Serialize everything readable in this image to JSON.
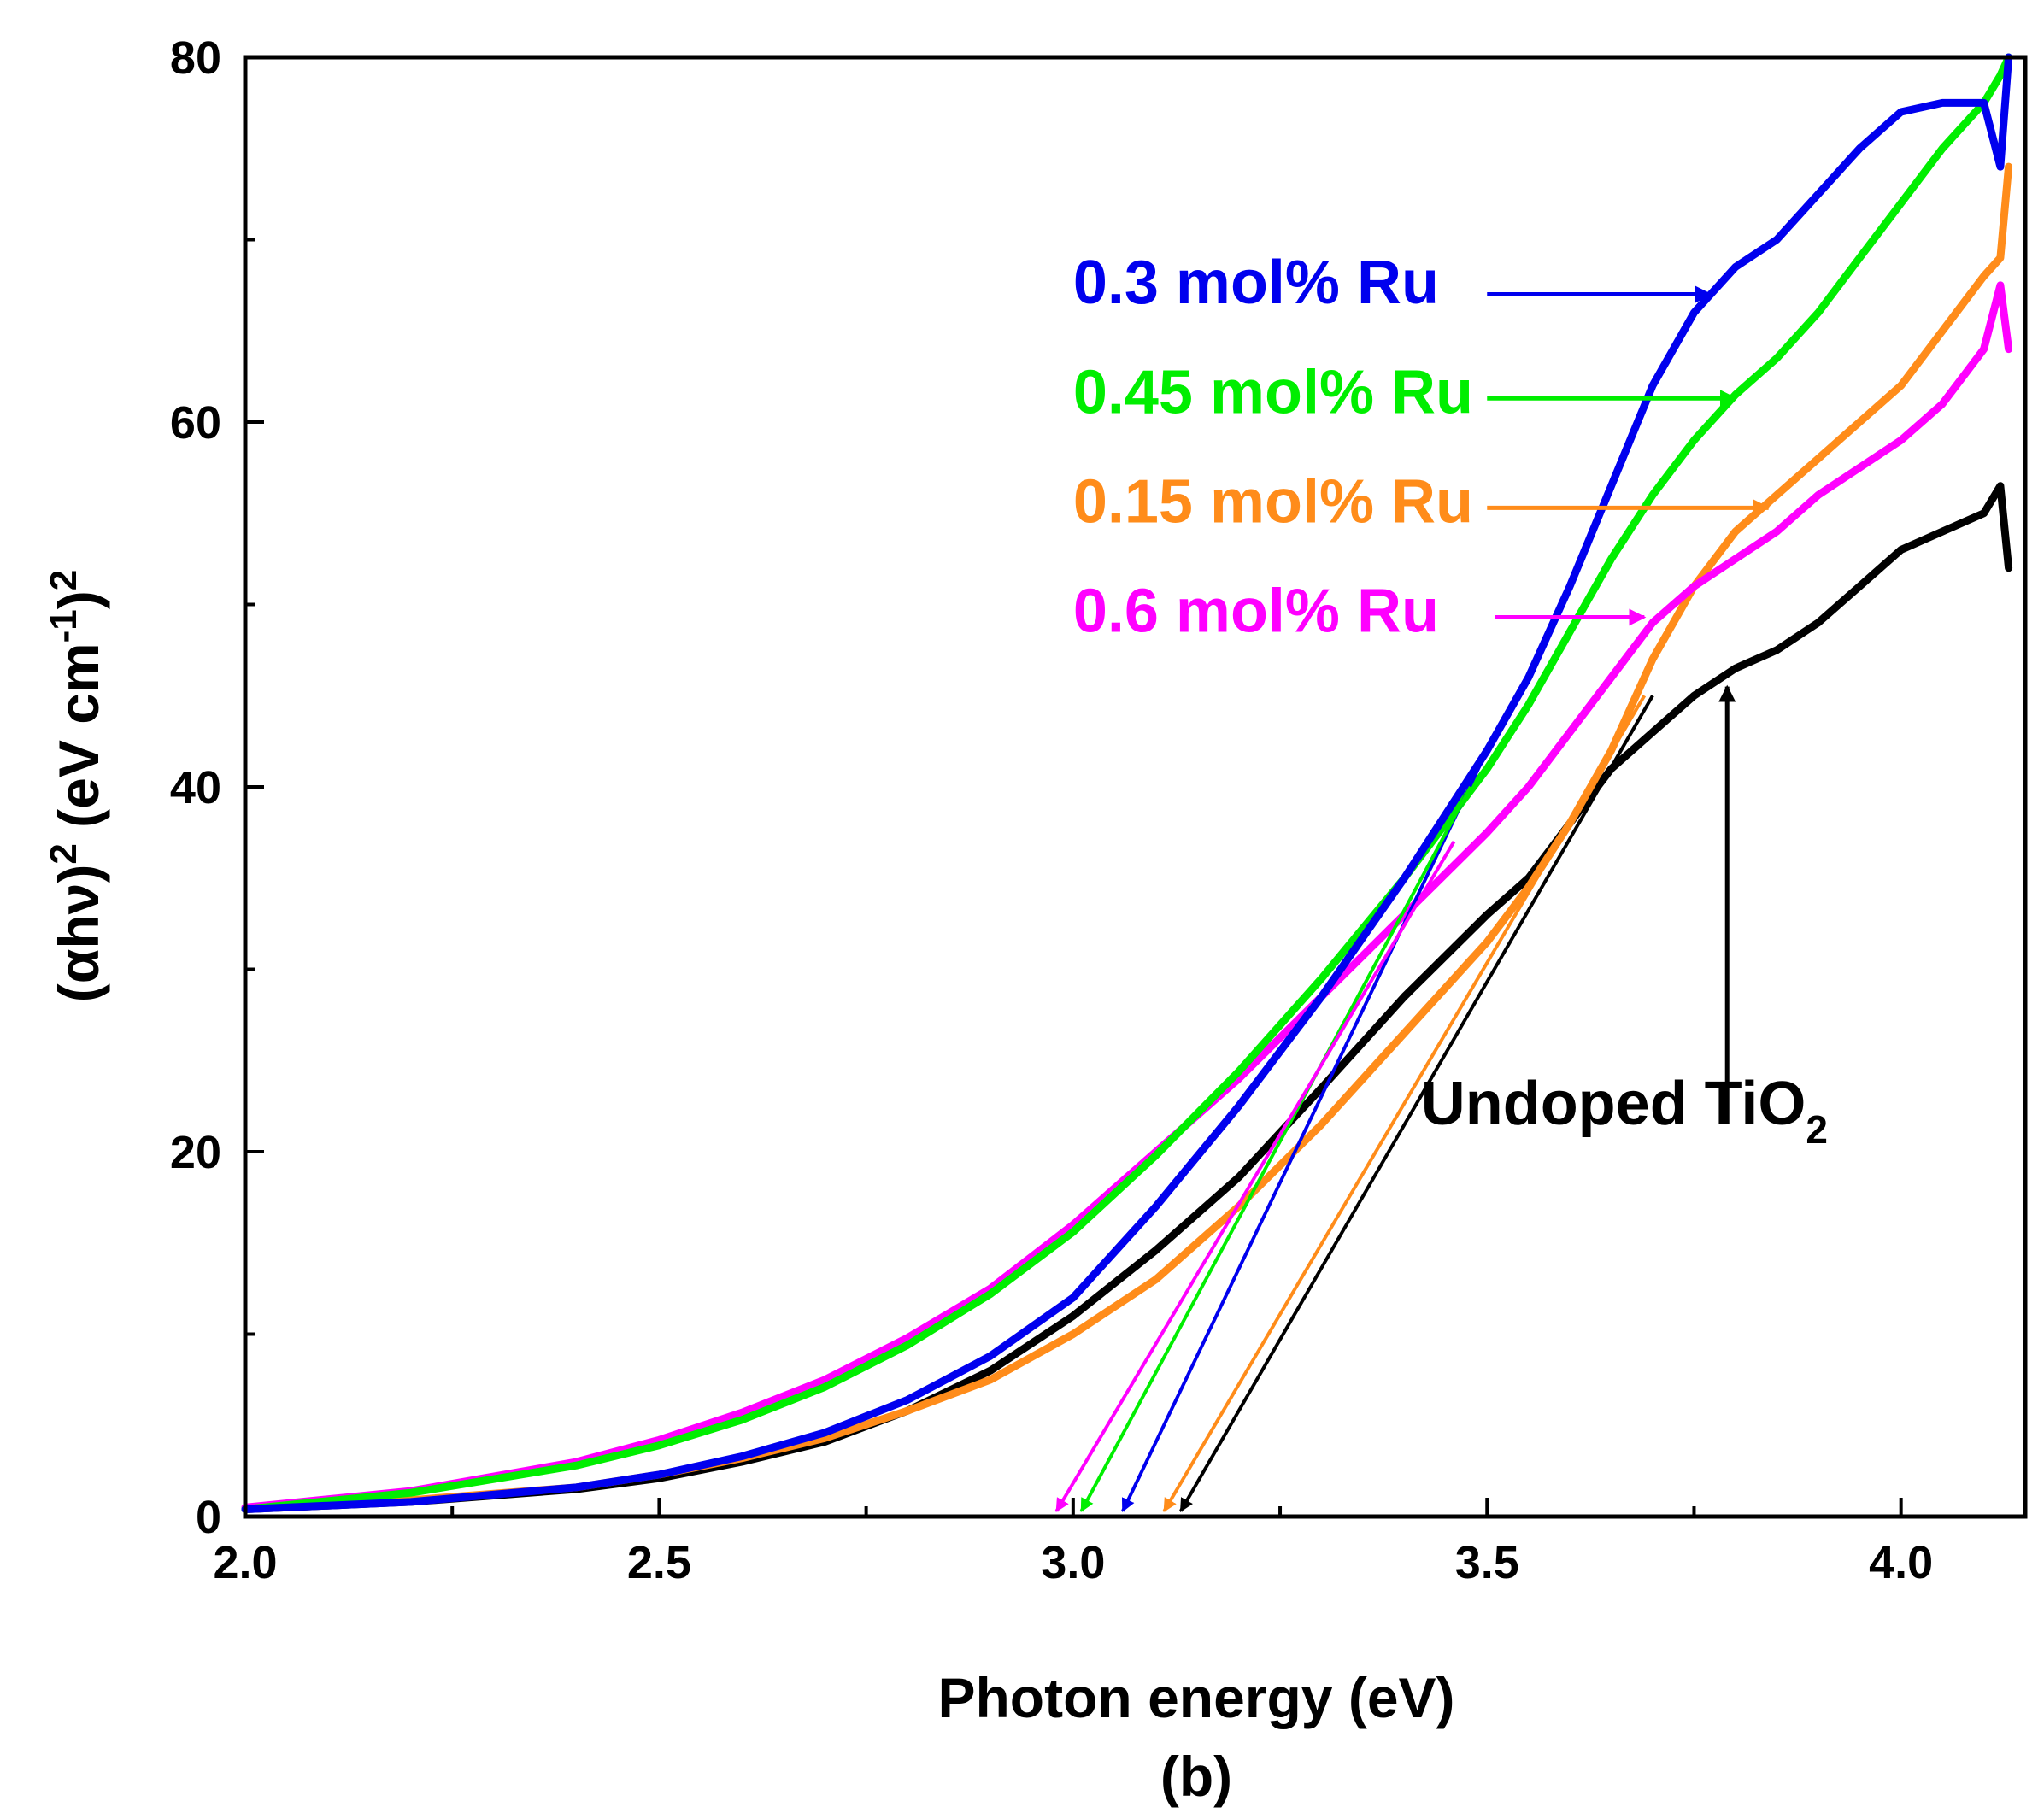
{
  "chart_data": {
    "type": "line",
    "panel_label": "(b)",
    "xlabel": "Photon energy (eV)",
    "ylabel_main": "(αhν)",
    "ylabel_sup1": "2",
    "ylabel_unit": " (eV cm",
    "ylabel_sup2": "-1",
    "ylabel_close": ")",
    "ylabel_sup3": "2",
    "xlim": [
      2.0,
      4.15
    ],
    "ylim": [
      0,
      80
    ],
    "x_ticks": [
      2.0,
      2.5,
      3.0,
      3.5,
      4.0
    ],
    "x_tick_labels": [
      "2.0",
      "2.5",
      "3.0",
      "3.5",
      "4.0"
    ],
    "y_ticks": [
      0,
      20,
      40,
      60,
      80
    ],
    "y_tick_labels": [
      "0",
      "20",
      "40",
      "60",
      "80"
    ],
    "series": [
      {
        "name": "Undoped TiO2",
        "color": "#000000",
        "points": [
          [
            2.0,
            0.4
          ],
          [
            2.2,
            0.8
          ],
          [
            2.4,
            1.5
          ],
          [
            2.5,
            2.1
          ],
          [
            2.6,
            3.0
          ],
          [
            2.7,
            4.1
          ],
          [
            2.8,
            5.8
          ],
          [
            2.9,
            8.0
          ],
          [
            3.0,
            11.0
          ],
          [
            3.1,
            14.6
          ],
          [
            3.2,
            18.6
          ],
          [
            3.3,
            23.5
          ],
          [
            3.4,
            28.5
          ],
          [
            3.5,
            33.0
          ],
          [
            3.55,
            35.0
          ],
          [
            3.6,
            38.0
          ],
          [
            3.65,
            41.0
          ],
          [
            3.7,
            43.0
          ],
          [
            3.75,
            45.0
          ],
          [
            3.8,
            46.5
          ],
          [
            3.85,
            47.5
          ],
          [
            3.9,
            49.0
          ],
          [
            3.95,
            51.0
          ],
          [
            4.0,
            53.0
          ],
          [
            4.05,
            54.0
          ],
          [
            4.1,
            55.0
          ],
          [
            4.12,
            56.5
          ],
          [
            4.13,
            52.0
          ]
        ]
      },
      {
        "name": "0.15 mol% Ru",
        "color": "#ff8c1a",
        "points": [
          [
            2.0,
            0.4
          ],
          [
            2.2,
            0.9
          ],
          [
            2.4,
            1.6
          ],
          [
            2.5,
            2.3
          ],
          [
            2.6,
            3.2
          ],
          [
            2.7,
            4.3
          ],
          [
            2.8,
            5.8
          ],
          [
            2.9,
            7.5
          ],
          [
            3.0,
            10.0
          ],
          [
            3.1,
            13.0
          ],
          [
            3.2,
            17.0
          ],
          [
            3.3,
            21.5
          ],
          [
            3.4,
            26.5
          ],
          [
            3.5,
            31.5
          ],
          [
            3.55,
            34.5
          ],
          [
            3.6,
            38.0
          ],
          [
            3.65,
            42.0
          ],
          [
            3.7,
            47.0
          ],
          [
            3.75,
            51.0
          ],
          [
            3.8,
            54.0
          ],
          [
            3.85,
            56.0
          ],
          [
            3.9,
            58.0
          ],
          [
            3.95,
            60.0
          ],
          [
            4.0,
            62.0
          ],
          [
            4.05,
            65.0
          ],
          [
            4.1,
            68.0
          ],
          [
            4.12,
            69.0
          ],
          [
            4.13,
            74.0
          ]
        ]
      },
      {
        "name": "0.6 mol% Ru",
        "color": "#ff00ff",
        "points": [
          [
            2.0,
            0.5
          ],
          [
            2.2,
            1.4
          ],
          [
            2.4,
            3.0
          ],
          [
            2.5,
            4.2
          ],
          [
            2.6,
            5.7
          ],
          [
            2.7,
            7.5
          ],
          [
            2.8,
            9.8
          ],
          [
            2.9,
            12.5
          ],
          [
            3.0,
            16.0
          ],
          [
            3.1,
            20.0
          ],
          [
            3.2,
            24.0
          ],
          [
            3.3,
            28.5
          ],
          [
            3.4,
            33.0
          ],
          [
            3.5,
            37.5
          ],
          [
            3.55,
            40.0
          ],
          [
            3.6,
            43.0
          ],
          [
            3.65,
            46.0
          ],
          [
            3.7,
            49.0
          ],
          [
            3.75,
            51.0
          ],
          [
            3.8,
            52.5
          ],
          [
            3.85,
            54.0
          ],
          [
            3.9,
            56.0
          ],
          [
            3.95,
            57.5
          ],
          [
            4.0,
            59.0
          ],
          [
            4.05,
            61.0
          ],
          [
            4.1,
            64.0
          ],
          [
            4.12,
            67.5
          ],
          [
            4.13,
            64.0
          ]
        ]
      },
      {
        "name": "0.45 mol% Ru",
        "color": "#00ee00",
        "points": [
          [
            2.0,
            0.4
          ],
          [
            2.2,
            1.3
          ],
          [
            2.4,
            2.8
          ],
          [
            2.5,
            3.9
          ],
          [
            2.6,
            5.3
          ],
          [
            2.7,
            7.1
          ],
          [
            2.8,
            9.4
          ],
          [
            2.9,
            12.2
          ],
          [
            3.0,
            15.6
          ],
          [
            3.1,
            19.8
          ],
          [
            3.2,
            24.4
          ],
          [
            3.3,
            29.5
          ],
          [
            3.4,
            35.0
          ],
          [
            3.5,
            41.0
          ],
          [
            3.55,
            44.5
          ],
          [
            3.6,
            48.5
          ],
          [
            3.65,
            52.5
          ],
          [
            3.7,
            56.0
          ],
          [
            3.75,
            59.0
          ],
          [
            3.8,
            61.5
          ],
          [
            3.85,
            63.5
          ],
          [
            3.9,
            66.0
          ],
          [
            3.95,
            69.0
          ],
          [
            4.0,
            72.0
          ],
          [
            4.05,
            75.0
          ],
          [
            4.1,
            77.5
          ],
          [
            4.12,
            79.0
          ],
          [
            4.13,
            80.0
          ]
        ]
      },
      {
        "name": "0.3 mol% Ru",
        "color": "#0000ee",
        "points": [
          [
            2.0,
            0.4
          ],
          [
            2.2,
            0.8
          ],
          [
            2.4,
            1.6
          ],
          [
            2.5,
            2.3
          ],
          [
            2.6,
            3.3
          ],
          [
            2.7,
            4.6
          ],
          [
            2.8,
            6.4
          ],
          [
            2.9,
            8.8
          ],
          [
            3.0,
            12.0
          ],
          [
            3.1,
            17.0
          ],
          [
            3.2,
            22.5
          ],
          [
            3.3,
            28.5
          ],
          [
            3.4,
            35.0
          ],
          [
            3.5,
            42.0
          ],
          [
            3.55,
            46.0
          ],
          [
            3.6,
            51.0
          ],
          [
            3.65,
            56.5
          ],
          [
            3.7,
            62.0
          ],
          [
            3.75,
            66.0
          ],
          [
            3.8,
            68.5
          ],
          [
            3.85,
            70.0
          ],
          [
            3.9,
            72.5
          ],
          [
            3.95,
            75.0
          ],
          [
            4.0,
            77.0
          ],
          [
            4.05,
            77.5
          ],
          [
            4.1,
            77.5
          ],
          [
            4.12,
            74.0
          ],
          [
            4.13,
            80.0
          ]
        ]
      }
    ],
    "labels": [
      {
        "text": "0.3 mol% Ru",
        "color": "#0000ee",
        "x": 3.0,
        "y": 66.5
      },
      {
        "text": "0.45 mol% Ru",
        "color": "#00ee00",
        "x": 3.0,
        "y": 60.5
      },
      {
        "text": "0.15 mol% Ru",
        "color": "#ff8c1a",
        "x": 3.0,
        "y": 54.5
      },
      {
        "text": "0.6 mol% Ru",
        "color": "#ff00ff",
        "x": 3.0,
        "y": 48.5
      },
      {
        "text": "Undoped TiO",
        "subscript": "2",
        "color": "#000000",
        "x": 3.42,
        "y": 21.5
      }
    ],
    "pointer_arrows": [
      {
        "color": "#0000ee",
        "from": [
          3.5,
          67.0
        ],
        "to": [
          3.77,
          67.0
        ]
      },
      {
        "color": "#00ee00",
        "from": [
          3.5,
          61.3
        ],
        "to": [
          3.8,
          61.3
        ]
      },
      {
        "color": "#ff8c1a",
        "from": [
          3.5,
          55.3
        ],
        "to": [
          3.84,
          55.3
        ]
      },
      {
        "color": "#ff00ff",
        "from": [
          3.51,
          49.3
        ],
        "to": [
          3.69,
          49.3
        ]
      },
      {
        "color": "#000000",
        "from": [
          3.79,
          21.5
        ],
        "to": [
          3.79,
          45.5
        ]
      }
    ],
    "tangent_lines": [
      {
        "color": "#0000ee",
        "from": [
          3.5,
          42.0
        ],
        "to": [
          3.06,
          0.3
        ]
      },
      {
        "color": "#00ee00",
        "from": [
          3.48,
          40.0
        ],
        "to": [
          3.01,
          0.3
        ]
      },
      {
        "color": "#ff00ff",
        "from": [
          3.46,
          37.0
        ],
        "to": [
          2.98,
          0.3
        ]
      },
      {
        "color": "#ff8c1a",
        "from": [
          3.69,
          45.0
        ],
        "to": [
          3.11,
          0.3
        ]
      },
      {
        "color": "#000000",
        "from": [
          3.7,
          45.0
        ],
        "to": [
          3.13,
          0.3
        ]
      }
    ],
    "grid": false
  }
}
